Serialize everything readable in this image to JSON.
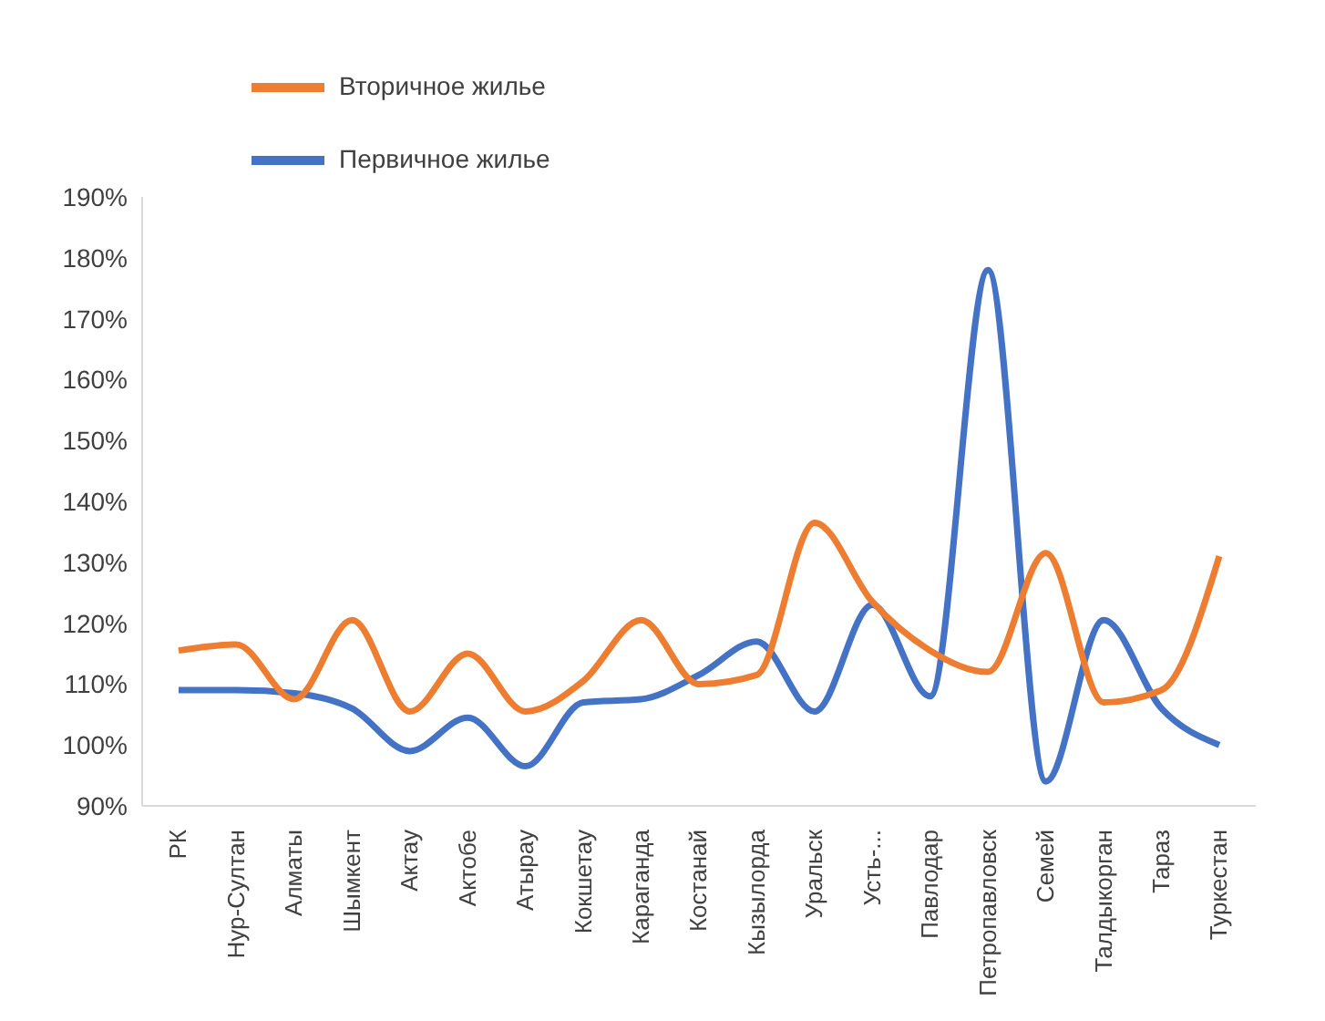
{
  "chart_data": {
    "type": "line",
    "categories": [
      "РК",
      "Нур-Султан",
      "Алматы",
      "Шымкент",
      "Актау",
      "Актобе",
      "Атырау",
      "Кокшетау",
      "Караганда",
      "Костанай",
      "Кызылорда",
      "Уральск",
      "Усть-...",
      "Павлодар",
      "Петропавловск",
      "Семей",
      "Талдыкорган",
      "Тараз",
      "Туркестан"
    ],
    "series": [
      {
        "name": "Первичное жилье",
        "color": "#4472c4",
        "values": [
          109,
          109,
          108.5,
          106,
          99,
          104.5,
          96.5,
          107,
          107.5,
          111.5,
          117,
          105.5,
          123,
          108,
          178,
          94,
          120.5,
          106,
          100
        ]
      },
      {
        "name": "Вторичное жилье",
        "color": "#ed7d31",
        "values": [
          115.5,
          116.5,
          107.5,
          120.5,
          105.5,
          115,
          105.5,
          110.5,
          120.5,
          110,
          111.5,
          136.5,
          123.5,
          115.5,
          112,
          131.5,
          107,
          109,
          131
        ]
      }
    ],
    "ylim": [
      90,
      190
    ],
    "yticks": [
      {
        "value": 90,
        "label": "90%"
      },
      {
        "value": 100,
        "label": "100%"
      },
      {
        "value": 110,
        "label": "110%"
      },
      {
        "value": 120,
        "label": "120%"
      },
      {
        "value": 130,
        "label": "130%"
      },
      {
        "value": 140,
        "label": "140%"
      },
      {
        "value": 150,
        "label": "150%"
      },
      {
        "value": 160,
        "label": "160%"
      },
      {
        "value": 170,
        "label": "170%"
      },
      {
        "value": 180,
        "label": "180%"
      },
      {
        "value": 190,
        "label": "190%"
      }
    ],
    "grid": false,
    "legend": "top left",
    "marker": "none",
    "line_style": "solid"
  }
}
